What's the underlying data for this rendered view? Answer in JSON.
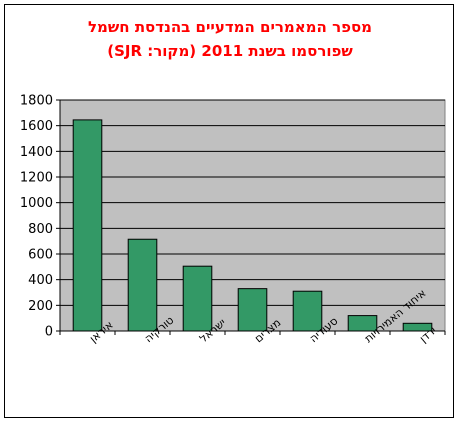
{
  "chart_data": {
    "type": "bar",
    "title_lines": [
      "מספר המאמרים המדעיים בהנדסת חשמל",
      "שפורסמו בשנת 2011 (מקור: SJR)"
    ],
    "title_color": "#ff0000",
    "categories": [
      "איראן",
      "טורקיה",
      "ישראל",
      "מצרים",
      "סעודיה",
      "איחוד האמירויות",
      "ירדן"
    ],
    "values": [
      1645,
      715,
      505,
      330,
      310,
      120,
      60
    ],
    "ylim": [
      0,
      1800
    ],
    "yticks": [
      0,
      200,
      400,
      600,
      800,
      1000,
      1200,
      1400,
      1600,
      1800
    ],
    "grid": true,
    "legend": "none",
    "bar_color": "#339966",
    "plot_background": "#c0c0c0"
  }
}
